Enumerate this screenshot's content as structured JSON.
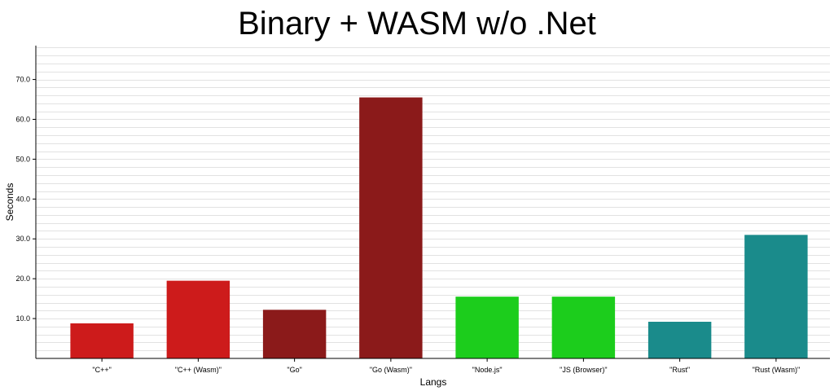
{
  "chart_data": {
    "type": "bar",
    "title": "Binary + WASM w/o .Net",
    "xlabel": "Langs",
    "ylabel": "Seconds",
    "categories": [
      "\"C++\"",
      "\"C++ (Wasm)\"",
      "\"Go\"",
      "\"Go (Wasm)\"",
      "\"Node.js\"",
      "\"JS (Browser)\"",
      "\"Rust\"",
      "\"Rust (Wasm)\""
    ],
    "values": [
      8.8,
      19.5,
      12.2,
      65.5,
      15.5,
      15.5,
      9.2,
      31.0
    ],
    "colors": [
      "#cd1b1b",
      "#cd1b1b",
      "#8b1a1a",
      "#8b1a1a",
      "#1ccd1c",
      "#1ccd1c",
      "#1a8b8b",
      "#1a8b8b"
    ],
    "ylim": [
      0,
      78.5
    ],
    "yticks": [
      10,
      20,
      30,
      40,
      50,
      60,
      70
    ],
    "ytick_labels": [
      "10.0",
      "20.0",
      "30.0",
      "40.0",
      "50.0",
      "60.0",
      "70.0"
    ],
    "minor_grid_step": 2,
    "grid": true,
    "legend": "none"
  }
}
